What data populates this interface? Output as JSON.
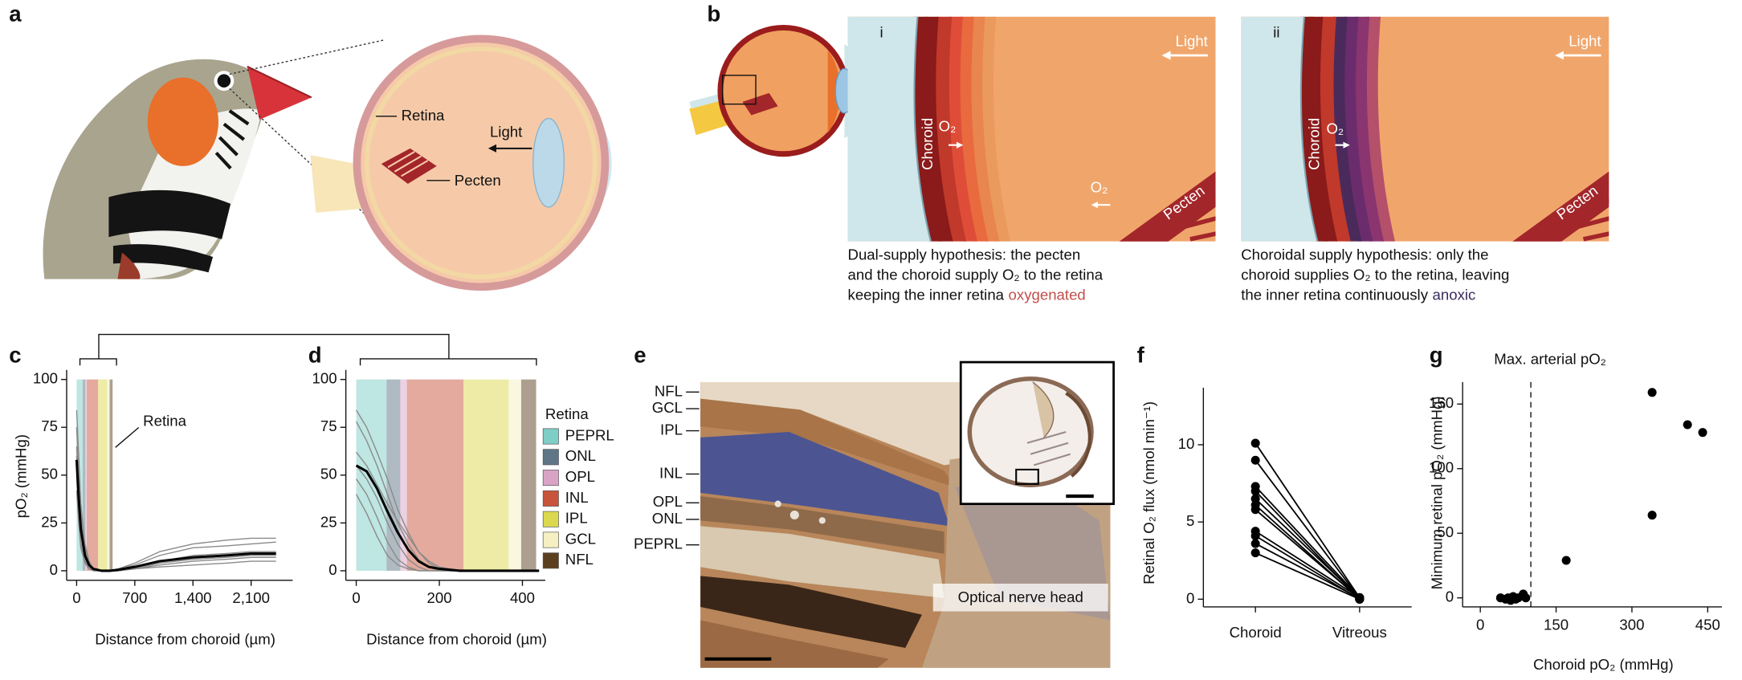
{
  "panel_labels": [
    "a",
    "b",
    "c",
    "d",
    "e",
    "f",
    "g"
  ],
  "panel_a": {
    "labels": [
      "Retina",
      "Light",
      "Pecten"
    ]
  },
  "panel_b": {
    "views": [
      {
        "numeral": "i",
        "light": "Light",
        "choroid": "Choroid",
        "o2": [
          "O₂",
          "O₂"
        ],
        "pecten": "Pecten",
        "caption": [
          "Dual-supply hypothesis: the pecten",
          "and the choroid supply O₂ to the retina",
          "keeping the inner retina"
        ],
        "highlight": "oxygenated"
      },
      {
        "numeral": "ii",
        "light": "Light",
        "choroid": "Choroid",
        "o2": [
          "O₂"
        ],
        "pecten": "Pecten",
        "caption": [
          "Choroidal supply hypothesis: only the",
          "choroid supplies O₂ to the retina, leaving",
          "the inner retina continuously"
        ],
        "highlight": "anoxic"
      }
    ]
  },
  "panel_e": {
    "layers": [
      "NFL",
      "GCL",
      "IPL",
      "INL",
      "OPL",
      "ONL",
      "PEPRL"
    ],
    "annotation": "Optical nerve head"
  },
  "retina_layers": {
    "title": "Retina",
    "items": [
      {
        "name": "PEPRL",
        "color": "#7ecdc6",
        "range": [
          0,
          73
        ]
      },
      {
        "name": "ONL",
        "color": "#5f7686",
        "range": [
          73,
          106
        ]
      },
      {
        "name": "OPL",
        "color": "#d9a3c6",
        "range": [
          106,
          122
        ]
      },
      {
        "name": "INL",
        "color": "#c8553b",
        "range": [
          122,
          258
        ]
      },
      {
        "name": "IPL",
        "color": "#dcd84e",
        "range": [
          258,
          367
        ]
      },
      {
        "name": "GCL",
        "color": "#f5efc2",
        "range": [
          367,
          397
        ]
      },
      {
        "name": "NFL",
        "color": "#5b3f1f",
        "range": [
          397,
          433
        ]
      }
    ]
  },
  "chart_data": [
    {
      "type": "line",
      "xlabel": "Distance from choroid (µm)",
      "ylabel": "pO₂ (mmHg)",
      "annotation": "Retina",
      "xlim": [
        -120,
        2600
      ],
      "ylim": [
        -5,
        105
      ],
      "xticks": [
        0,
        700,
        {
          "value": 1400,
          "label": "1,400"
        },
        {
          "value": 2100,
          "label": "2,100"
        }
      ],
      "yticks": [
        0,
        25,
        50,
        75,
        100
      ],
      "x": [
        0,
        25,
        50,
        100,
        150,
        200,
        300,
        400,
        500,
        700,
        1000,
        1400,
        1800,
        2100,
        2400
      ],
      "series": [
        {
          "color": "#8a8a8a",
          "values": [
            84,
            60,
            35,
            14,
            5,
            1,
            0,
            0,
            1,
            4,
            10,
            14,
            16,
            17,
            17
          ]
        },
        {
          "color": "#8a8a8a",
          "values": [
            75,
            50,
            28,
            10,
            3,
            0,
            0,
            0,
            1,
            3,
            8,
            12,
            13,
            14,
            15
          ]
        },
        {
          "color": "#8a8a8a",
          "values": [
            65,
            40,
            20,
            6,
            2,
            0,
            0,
            0,
            0,
            2,
            5,
            8,
            9,
            10,
            10
          ]
        },
        {
          "color": "#8a8a8a",
          "values": [
            50,
            30,
            15,
            5,
            1,
            0,
            0,
            0,
            0,
            1,
            3,
            5,
            6,
            7,
            7
          ]
        },
        {
          "color": "#8a8a8a",
          "values": [
            42,
            25,
            12,
            4,
            1,
            0,
            0,
            0,
            0,
            1,
            2,
            3,
            4,
            5,
            5
          ]
        },
        {
          "color": "#8a8a8a",
          "values": [
            60,
            45,
            30,
            12,
            4,
            1,
            0,
            0,
            0,
            1,
            4,
            6,
            7,
            8,
            8
          ]
        },
        {
          "color": "#000000",
          "values": [
            58,
            38,
            22,
            8,
            3,
            1,
            0,
            0,
            0.5,
            2,
            5,
            7,
            8,
            9,
            9
          ]
        }
      ]
    },
    {
      "type": "line",
      "xlabel": "Distance from choroid (µm)",
      "xlim": [
        -25,
        455
      ],
      "ylim": [
        -5,
        105
      ],
      "xticks": [
        0,
        200,
        400
      ],
      "yticks": [
        0,
        25,
        50,
        75,
        100
      ],
      "x": [
        0,
        25,
        50,
        75,
        100,
        125,
        150,
        175,
        200,
        250,
        300,
        350,
        400,
        440
      ],
      "series": [
        {
          "color": "#8a8a8a",
          "values": [
            84,
            75,
            62,
            48,
            32,
            20,
            10,
            4,
            1,
            0,
            0,
            0,
            0,
            0
          ]
        },
        {
          "color": "#8a8a8a",
          "values": [
            78,
            68,
            55,
            40,
            25,
            14,
            6,
            2,
            0,
            0,
            0,
            0,
            0,
            0
          ]
        },
        {
          "color": "#8a8a8a",
          "values": [
            62,
            55,
            45,
            35,
            26,
            18,
            10,
            5,
            2,
            0,
            0,
            0,
            0,
            0
          ]
        },
        {
          "color": "#8a8a8a",
          "values": [
            55,
            48,
            38,
            25,
            14,
            6,
            2,
            0,
            0,
            0,
            0,
            0,
            0,
            0
          ]
        },
        {
          "color": "#8a8a8a",
          "values": [
            48,
            40,
            28,
            15,
            6,
            2,
            0,
            0,
            0,
            0,
            0,
            0,
            0,
            0
          ]
        },
        {
          "color": "#8a8a8a",
          "values": [
            40,
            30,
            18,
            8,
            3,
            1,
            0,
            0,
            0,
            0,
            0,
            0,
            0,
            0
          ]
        },
        {
          "color": "#000000",
          "values": [
            55,
            52,
            43,
            31,
            20,
            11,
            5,
            2,
            1,
            0,
            0,
            0,
            0,
            0
          ]
        }
      ]
    },
    {
      "type": "line",
      "ylabel": "Retinal O₂ flux (nmol min⁻¹)",
      "categories": [
        "Choroid",
        "Vitreous"
      ],
      "ylim": [
        -0.5,
        13.7
      ],
      "yticks": [
        0,
        5,
        10
      ],
      "color": "#000000",
      "series": [
        {
          "values": [
            10.1,
            0.1
          ]
        },
        {
          "values": [
            9.0,
            0.05
          ]
        },
        {
          "values": [
            7.3,
            0.1
          ]
        },
        {
          "values": [
            7.0,
            0
          ]
        },
        {
          "values": [
            6.5,
            0.1
          ]
        },
        {
          "values": [
            6.1,
            0
          ]
        },
        {
          "values": [
            5.8,
            0.05
          ]
        },
        {
          "values": [
            4.4,
            0.1
          ]
        },
        {
          "values": [
            4.1,
            0
          ]
        },
        {
          "values": [
            3.6,
            0.05
          ]
        },
        {
          "values": [
            3.0,
            0
          ]
        }
      ]
    },
    {
      "type": "scatter",
      "xlabel": "Choroid pO₂ (mmHg)",
      "ylabel": "Minimum retinal pO₂ (mmHg)",
      "annotation": "Max. arterial pO₂",
      "reference_x": 100,
      "xlim": [
        -35,
        478
      ],
      "ylim": [
        -7,
        167
      ],
      "xticks": [
        0,
        150,
        300,
        450
      ],
      "yticks": [
        0,
        50,
        100,
        150
      ],
      "color": "#000000",
      "x": [
        40,
        50,
        55,
        60,
        65,
        70,
        75,
        85,
        90,
        170,
        340,
        340,
        410,
        440
      ],
      "values": [
        0,
        -1,
        0,
        -2,
        1,
        -1,
        0,
        3,
        0,
        29,
        64,
        159,
        134,
        128
      ]
    }
  ]
}
